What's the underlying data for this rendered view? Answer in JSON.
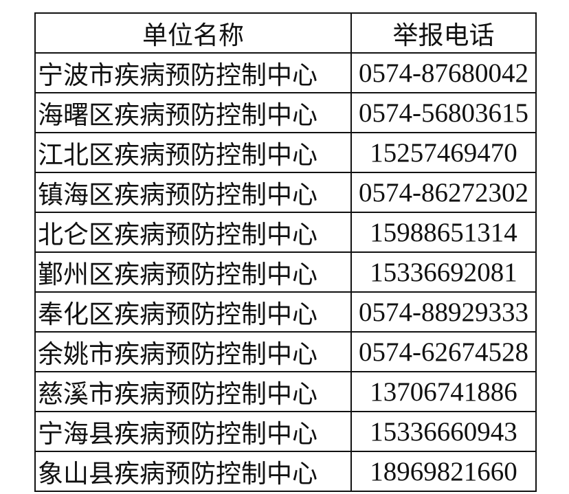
{
  "table": {
    "headers": {
      "unit": "单位名称",
      "phone": "举报电话"
    },
    "rows": [
      {
        "unit": "宁波市疾病预防控制中心",
        "phone": "0574-87680042"
      },
      {
        "unit": "海曙区疾病预防控制中心",
        "phone": "0574-56803615"
      },
      {
        "unit": "江北区疾病预防控制中心",
        "phone": "15257469470"
      },
      {
        "unit": "镇海区疾病预防控制中心",
        "phone": "0574-86272302"
      },
      {
        "unit": "北仑区疾病预防控制中心",
        "phone": "15988651314"
      },
      {
        "unit": "鄞州区疾病预防控制中心",
        "phone": "15336692081"
      },
      {
        "unit": "奉化区疾病预防控制中心",
        "phone": "0574-88929333"
      },
      {
        "unit": "余姚市疾病预防控制中心",
        "phone": "0574-62674528"
      },
      {
        "unit": "慈溪市疾病预防控制中心",
        "phone": "13706741886"
      },
      {
        "unit": "宁海县疾病预防控制中心",
        "phone": "15336660943"
      },
      {
        "unit": "象山县疾病预防控制中心",
        "phone": "18969821660"
      }
    ]
  }
}
